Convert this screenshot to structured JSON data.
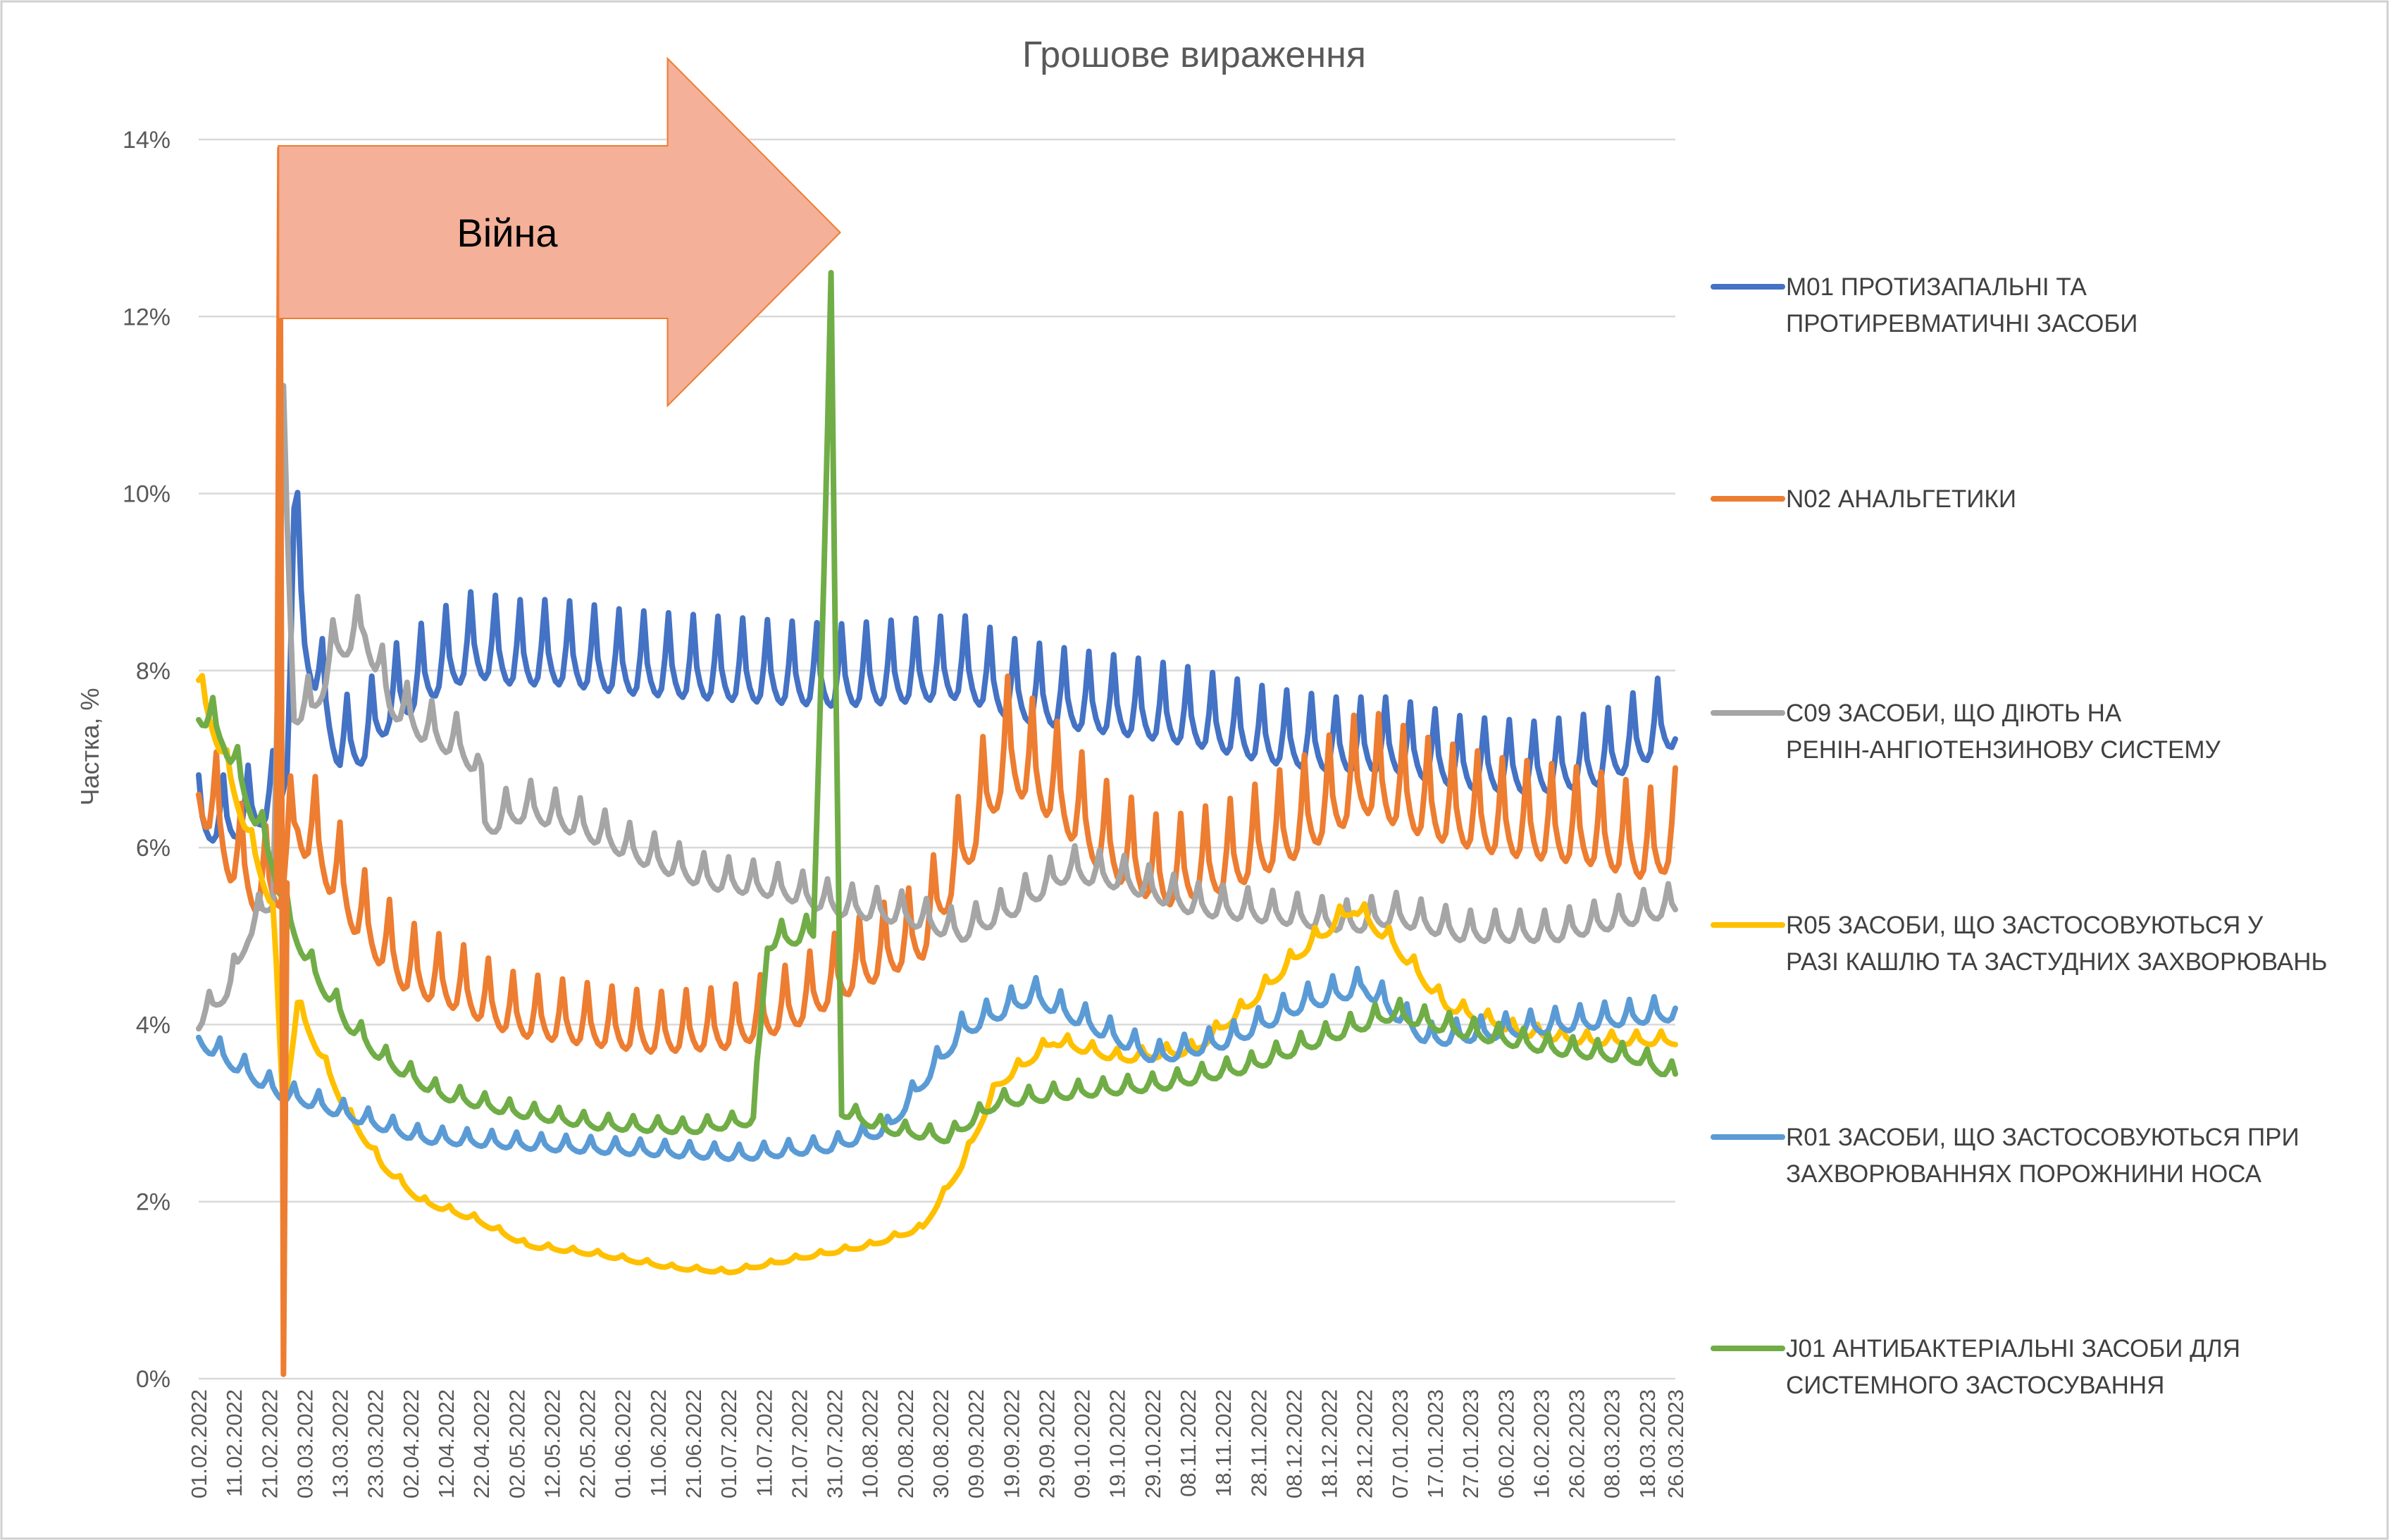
{
  "chart_data": {
    "type": "line",
    "title": "Грошове вираження",
    "ylabel": "Частка, %",
    "xlabel": "",
    "ylim": [
      0,
      14
    ],
    "ytick_step": 2,
    "ytick_labels": [
      "0%",
      "2%",
      "4%",
      "6%",
      "8%",
      "10%",
      "12%",
      "14%"
    ],
    "x_range": [
      "2022-02-01",
      "2023-03-26"
    ],
    "x_tick_labels": [
      "01.02.2022",
      "11.02.2022",
      "21.02.2022",
      "03.03.2022",
      "13.03.2022",
      "23.03.2022",
      "02.04.2022",
      "12.04.2022",
      "22.04.2022",
      "02.05.2022",
      "12.05.2022",
      "22.05.2022",
      "01.06.2022",
      "11.06.2022",
      "21.06.2022",
      "01.07.2022",
      "11.07.2022",
      "21.07.2022",
      "31.07.2022",
      "10.08.2022",
      "20.08.2022",
      "30.08.2022",
      "09.09.2022",
      "19.09.2022",
      "29.09.2022",
      "09.10.2022",
      "19.10.2022",
      "29.10.2022",
      "08.11.2022",
      "18.11.2022",
      "28.11.2022",
      "08.12.2022",
      "18.12.2022",
      "28.12.2022",
      "07.01.2023",
      "17.01.2023",
      "27.01.2023",
      "06.02.2023",
      "16.02.2023",
      "26.02.2023",
      "08.03.2023",
      "18.03.2023",
      "26.03.2023"
    ],
    "grid": true,
    "legend": "right",
    "annotation": {
      "label": "Війна",
      "from": "2022-02-24",
      "to": "2022-07-31",
      "y": 12.9,
      "arrow_color": "#f4b098",
      "arrow_edge": "#ed7d31"
    },
    "series": [
      {
        "name": "M01 ПРОТИЗАПАЛЬНІ ТА ПРОТИРЕВМАТИЧНІ ЗАСОБИ",
        "color": "#4472c4",
        "weekly_spike": 0.6,
        "points": [
          [
            "2022-02-01",
            6.2
          ],
          [
            "2022-02-10",
            6.2
          ],
          [
            "2022-02-20",
            6.4
          ],
          [
            "2022-02-24",
            6.5
          ],
          [
            "2022-02-26",
            7.0
          ],
          [
            "2022-02-28",
            9.5
          ],
          [
            "2022-03-03",
            8.3
          ],
          [
            "2022-03-08",
            7.6
          ],
          [
            "2022-03-13",
            7.0
          ],
          [
            "2022-03-20",
            7.1
          ],
          [
            "2022-03-27",
            7.5
          ],
          [
            "2022-04-03",
            7.7
          ],
          [
            "2022-04-10",
            7.9
          ],
          [
            "2022-04-20",
            8.1
          ],
          [
            "2022-05-01",
            8.0
          ],
          [
            "2022-05-15",
            8.0
          ],
          [
            "2022-06-01",
            7.9
          ],
          [
            "2022-06-20",
            7.85
          ],
          [
            "2022-07-10",
            7.8
          ],
          [
            "2022-08-01",
            7.75
          ],
          [
            "2022-08-20",
            7.8
          ],
          [
            "2022-09-05",
            7.85
          ],
          [
            "2022-09-20",
            7.6
          ],
          [
            "2022-10-05",
            7.5
          ],
          [
            "2022-10-25",
            7.4
          ],
          [
            "2022-11-10",
            7.3
          ],
          [
            "2022-12-01",
            7.1
          ],
          [
            "2022-12-20",
            7.0
          ],
          [
            "2023-01-05",
            7.0
          ],
          [
            "2023-01-25",
            6.8
          ],
          [
            "2023-02-15",
            6.75
          ],
          [
            "2023-03-05",
            6.85
          ],
          [
            "2023-03-26",
            7.3
          ]
        ]
      },
      {
        "name": "N02 АНАЛЬГЕТИКИ",
        "color": "#ed7d31",
        "weekly_spike": 0.9,
        "points": [
          [
            "2022-02-01",
            6.6
          ],
          [
            "2022-02-10",
            5.8
          ],
          [
            "2022-02-18",
            5.4
          ],
          [
            "2022-02-24",
            5.5
          ],
          [
            "2022-03-01",
            6.2
          ],
          [
            "2022-03-08",
            5.8
          ],
          [
            "2022-03-20",
            5.0
          ],
          [
            "2022-04-01",
            4.5
          ],
          [
            "2022-04-15",
            4.3
          ],
          [
            "2022-05-01",
            4.0
          ],
          [
            "2022-05-20",
            3.9
          ],
          [
            "2022-06-10",
            3.8
          ],
          [
            "2022-07-01",
            3.85
          ],
          [
            "2022-07-20",
            4.1
          ],
          [
            "2022-08-05",
            4.5
          ],
          [
            "2022-08-25",
            4.9
          ],
          [
            "2022-09-05",
            5.8
          ],
          [
            "2022-09-18",
            6.9
          ],
          [
            "2022-10-01",
            6.5
          ],
          [
            "2022-10-15",
            5.9
          ],
          [
            "2022-11-01",
            5.5
          ],
          [
            "2022-11-20",
            5.7
          ],
          [
            "2022-12-10",
            6.1
          ],
          [
            "2022-12-28",
            6.6
          ],
          [
            "2023-01-15",
            6.3
          ],
          [
            "2023-02-05",
            6.1
          ],
          [
            "2023-03-01",
            6.0
          ],
          [
            "2023-03-20",
            5.8
          ],
          [
            "2023-03-26",
            6.0
          ]
        ]
      },
      {
        "name": "C09 ЗАСОБИ, ЩО ДІЮТЬ НА РЕНІН-АНГІОТЕНЗИНОВУ СИСТЕМУ",
        "color": "#a5a5a5",
        "weekly_spike": 0.35,
        "points": [
          [
            "2022-02-01",
            4.0
          ],
          [
            "2022-02-10",
            4.4
          ],
          [
            "2022-02-15",
            5.0
          ],
          [
            "2022-02-22",
            5.4
          ],
          [
            "2022-02-25",
            10.6
          ],
          [
            "2022-02-28",
            7.5
          ],
          [
            "2022-03-05",
            7.5
          ],
          [
            "2022-03-12",
            8.2
          ],
          [
            "2022-03-20",
            8.4
          ],
          [
            "2022-03-27",
            7.6
          ],
          [
            "2022-04-05",
            7.3
          ],
          [
            "2022-04-15",
            7.1
          ],
          [
            "2022-04-21",
            6.9
          ],
          [
            "2022-04-23",
            6.2
          ],
          [
            "2022-05-05",
            6.4
          ],
          [
            "2022-05-20",
            6.2
          ],
          [
            "2022-06-05",
            5.9
          ],
          [
            "2022-06-25",
            5.6
          ],
          [
            "2022-07-15",
            5.5
          ],
          [
            "2022-08-01",
            5.3
          ],
          [
            "2022-08-20",
            5.2
          ],
          [
            "2022-09-05",
            5.0
          ],
          [
            "2022-09-20",
            5.3
          ],
          [
            "2022-10-05",
            5.7
          ],
          [
            "2022-10-20",
            5.6
          ],
          [
            "2022-11-10",
            5.3
          ],
          [
            "2022-12-05",
            5.2
          ],
          [
            "2022-12-25",
            5.1
          ],
          [
            "2023-01-05",
            5.2
          ],
          [
            "2023-01-25",
            5.0
          ],
          [
            "2023-02-20",
            5.0
          ],
          [
            "2023-03-26",
            5.3
          ]
        ]
      },
      {
        "name": "R05 ЗАСОБИ, ЩО ЗАСТОСОВУЮТЬСЯ У РАЗІ КАШЛЮ ТА ЗАСТУДНИХ ЗАХВОРЮВАНЬ",
        "color": "#ffc000",
        "weekly_spike": 0.2,
        "points": [
          [
            "2022-02-01",
            7.8
          ],
          [
            "2022-02-08",
            7.0
          ],
          [
            "2022-02-16",
            6.0
          ],
          [
            "2022-02-22",
            5.3
          ],
          [
            "2022-02-25",
            3.0
          ],
          [
            "2022-03-01",
            4.2
          ],
          [
            "2022-03-08",
            3.6
          ],
          [
            "2022-03-15",
            3.0
          ],
          [
            "2022-03-25",
            2.4
          ],
          [
            "2022-04-05",
            2.0
          ],
          [
            "2022-04-20",
            1.8
          ],
          [
            "2022-05-05",
            1.5
          ],
          [
            "2022-05-25",
            1.4
          ],
          [
            "2022-06-15",
            1.25
          ],
          [
            "2022-07-01",
            1.2
          ],
          [
            "2022-07-20",
            1.35
          ],
          [
            "2022-08-10",
            1.5
          ],
          [
            "2022-08-25",
            1.7
          ],
          [
            "2022-09-05",
            2.4
          ],
          [
            "2022-09-15",
            3.3
          ],
          [
            "2022-10-01",
            3.8
          ],
          [
            "2022-10-20",
            3.6
          ],
          [
            "2022-11-10",
            3.7
          ],
          [
            "2022-11-25",
            4.2
          ],
          [
            "2022-12-10",
            4.8
          ],
          [
            "2022-12-25",
            5.3
          ],
          [
            "2023-01-05",
            4.9
          ],
          [
            "2023-01-20",
            4.2
          ],
          [
            "2023-02-10",
            3.9
          ],
          [
            "2023-03-01",
            3.8
          ],
          [
            "2023-03-26",
            3.8
          ]
        ]
      },
      {
        "name": "R01 ЗАСОБИ, ЩО ЗАСТОСОВУЮТЬСЯ ПРИ ЗАХВОРЮВАННЯХ ПОРОЖНИНИ НОСА",
        "color": "#5b9bd5",
        "weekly_spike": 0.35,
        "points": [
          [
            "2022-02-01",
            3.8
          ],
          [
            "2022-02-12",
            3.5
          ],
          [
            "2022-02-24",
            3.2
          ],
          [
            "2022-03-05",
            3.1
          ],
          [
            "2022-03-20",
            2.9
          ],
          [
            "2022-04-05",
            2.7
          ],
          [
            "2022-04-25",
            2.65
          ],
          [
            "2022-05-15",
            2.6
          ],
          [
            "2022-06-10",
            2.55
          ],
          [
            "2022-07-05",
            2.5
          ],
          [
            "2022-07-30",
            2.6
          ],
          [
            "2022-08-15",
            2.8
          ],
          [
            "2022-09-05",
            3.9
          ],
          [
            "2022-09-25",
            4.3
          ],
          [
            "2022-10-10",
            4.0
          ],
          [
            "2022-10-30",
            3.6
          ],
          [
            "2022-11-20",
            3.8
          ],
          [
            "2022-12-10",
            4.2
          ],
          [
            "2022-12-28",
            4.4
          ],
          [
            "2023-01-15",
            3.8
          ],
          [
            "2023-02-05",
            3.9
          ],
          [
            "2023-03-01",
            4.0
          ],
          [
            "2023-03-26",
            4.1
          ]
        ]
      },
      {
        "name": "J01 АНТИБАКТЕРІАЛЬНІ ЗАСОБИ ДЛЯ СИСТЕМНОГО ЗАСТОСУВАННЯ",
        "color": "#70ad47",
        "weekly_spike": 0.3,
        "points": [
          [
            "2022-02-01",
            7.5
          ],
          [
            "2022-02-08",
            7.2
          ],
          [
            "2022-02-16",
            6.4
          ],
          [
            "2022-02-22",
            5.8
          ],
          [
            "2022-02-26",
            5.2
          ],
          [
            "2022-03-05",
            4.6
          ],
          [
            "2022-03-15",
            4.0
          ],
          [
            "2022-03-25",
            3.6
          ],
          [
            "2022-04-10",
            3.2
          ],
          [
            "2022-05-01",
            3.0
          ],
          [
            "2022-05-25",
            2.85
          ],
          [
            "2022-06-20",
            2.8
          ],
          [
            "2022-07-08",
            2.9
          ],
          [
            "2022-07-12",
            4.9
          ],
          [
            "2022-07-25",
            5.0
          ],
          [
            "2022-07-30",
            11.9
          ],
          [
            "2022-08-02",
            3.0
          ],
          [
            "2022-08-15",
            2.8
          ],
          [
            "2022-09-01",
            2.7
          ],
          [
            "2022-09-15",
            3.1
          ],
          [
            "2022-10-05",
            3.2
          ],
          [
            "2022-11-01",
            3.3
          ],
          [
            "2022-11-25",
            3.5
          ],
          [
            "2022-12-15",
            3.8
          ],
          [
            "2023-01-05",
            4.1
          ],
          [
            "2023-01-25",
            3.9
          ],
          [
            "2023-02-20",
            3.7
          ],
          [
            "2023-03-15",
            3.6
          ],
          [
            "2023-03-26",
            3.4
          ]
        ]
      }
    ]
  }
}
